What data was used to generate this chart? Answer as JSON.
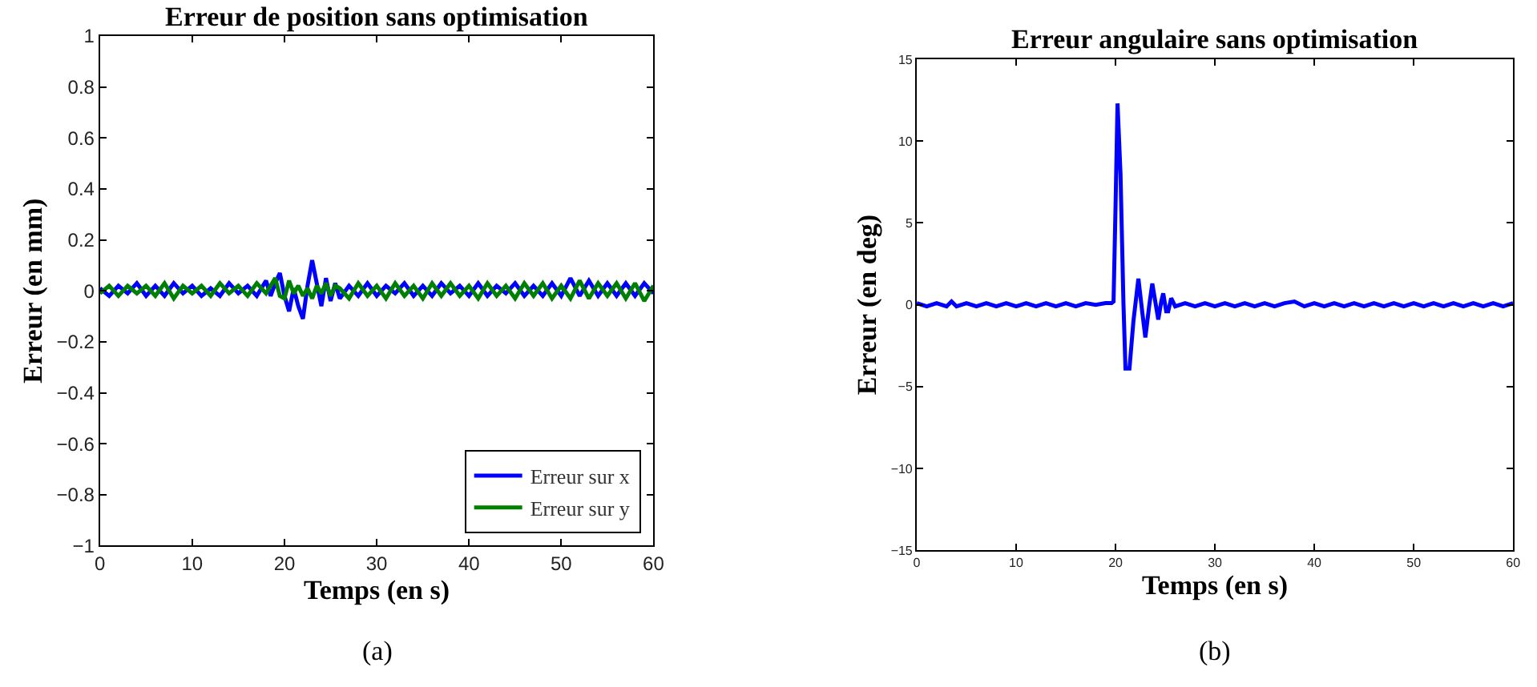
{
  "chart_data": [
    {
      "type": "line",
      "title": "Erreur de position sans optimisation",
      "xlabel": "Temps (en s)",
      "ylabel": "Erreur (en mm)",
      "xlim": [
        0,
        60
      ],
      "ylim": [
        -1,
        1
      ],
      "xticks": [
        0,
        10,
        20,
        30,
        40,
        50,
        60
      ],
      "yticks": [
        -1,
        -0.8,
        -0.6,
        -0.4,
        -0.2,
        0,
        0.2,
        0.4,
        0.6,
        0.8,
        1
      ],
      "legend": "bottom right",
      "annotations": [
        "(a)"
      ],
      "x": [
        0,
        1,
        2,
        3,
        4,
        5,
        6,
        7,
        8,
        9,
        10,
        11,
        12,
        13,
        14,
        15,
        16,
        17,
        18,
        18.5,
        19,
        19.5,
        20,
        20.5,
        21,
        21.5,
        22,
        22.5,
        23,
        23.5,
        24,
        24.5,
        25,
        25.5,
        26,
        27,
        28,
        29,
        30,
        31,
        32,
        33,
        34,
        35,
        36,
        37,
        38,
        39,
        40,
        41,
        42,
        43,
        44,
        45,
        46,
        47,
        48,
        49,
        50,
        51,
        52,
        53,
        54,
        55,
        56,
        57,
        58,
        59,
        60
      ],
      "series": [
        {
          "name": "Erreur sur x",
          "color": "#0000ff",
          "values": [
            0.01,
            -0.02,
            0.02,
            -0.01,
            0.03,
            -0.02,
            0.02,
            -0.02,
            0.03,
            -0.01,
            0.02,
            -0.02,
            0.01,
            -0.02,
            0.03,
            -0.01,
            0.02,
            -0.02,
            0.04,
            -0.02,
            0.03,
            0.07,
            -0.02,
            -0.08,
            0.01,
            -0.06,
            -0.11,
            0.02,
            0.12,
            0.03,
            -0.06,
            0.05,
            -0.04,
            0.03,
            -0.03,
            0.02,
            -0.02,
            0.03,
            -0.02,
            0.02,
            -0.01,
            0.03,
            -0.02,
            0.02,
            -0.02,
            0.03,
            -0.01,
            0.02,
            -0.02,
            0.03,
            -0.02,
            0.02,
            -0.01,
            0.03,
            -0.02,
            0.02,
            -0.02,
            0.03,
            -0.02,
            0.05,
            -0.02,
            0.04,
            -0.02,
            0.03,
            -0.02,
            0.03,
            -0.02,
            0.03,
            -0.01
          ]
        },
        {
          "name": "Erreur sur y",
          "color": "#008000",
          "values": [
            -0.01,
            0.02,
            -0.02,
            0.02,
            -0.01,
            0.02,
            -0.02,
            0.03,
            -0.03,
            0.02,
            -0.01,
            0.02,
            -0.02,
            0.03,
            -0.01,
            0.02,
            -0.02,
            0.03,
            -0.01,
            0.02,
            0.05,
            -0.02,
            -0.03,
            0.04,
            -0.01,
            0.02,
            -0.02,
            0.01,
            -0.03,
            0.02,
            -0.01,
            0.03,
            -0.02,
            0.02,
            0.01,
            -0.03,
            0.03,
            -0.02,
            0.02,
            -0.03,
            0.03,
            -0.02,
            0.02,
            -0.03,
            0.03,
            -0.02,
            0.03,
            -0.02,
            0.02,
            -0.03,
            0.03,
            -0.02,
            0.02,
            -0.03,
            0.03,
            -0.02,
            0.03,
            -0.03,
            0.02,
            -0.03,
            0.04,
            -0.03,
            0.03,
            -0.02,
            0.03,
            -0.03,
            0.03,
            -0.04,
            0.02
          ]
        }
      ]
    },
    {
      "type": "line",
      "title": "Erreur angulaire sans optimisation",
      "xlabel": "Temps (en s)",
      "ylabel": "Erreur (en deg)",
      "xlim": [
        0,
        60
      ],
      "ylim": [
        -15,
        15
      ],
      "xticks": [
        0,
        10,
        20,
        30,
        40,
        50,
        60
      ],
      "yticks": [
        -15,
        -10,
        -5,
        0,
        5,
        10,
        15
      ],
      "annotations": [
        "(b)"
      ],
      "x": [
        0,
        1,
        2,
        3,
        3.5,
        4,
        5,
        6,
        7,
        8,
        9,
        10,
        11,
        12,
        13,
        14,
        15,
        16,
        17,
        18,
        19,
        19.6,
        19.8,
        20.0,
        20.2,
        20.5,
        20.8,
        21.0,
        21.4,
        21.8,
        22.3,
        22.7,
        23.0,
        23.4,
        23.7,
        24.0,
        24.3,
        24.6,
        24.8,
        25.1,
        25.3,
        25.6,
        26,
        27,
        28,
        29,
        30,
        31,
        32,
        33,
        34,
        35,
        36,
        37,
        38,
        39,
        40,
        41,
        42,
        43,
        44,
        45,
        46,
        47,
        48,
        49,
        50,
        51,
        52,
        53,
        54,
        55,
        56,
        57,
        58,
        59,
        60
      ],
      "series": [
        {
          "color": "#0000ff",
          "values": [
            0.1,
            -0.1,
            0.1,
            -0.1,
            0.2,
            -0.1,
            0.1,
            -0.1,
            0.1,
            -0.1,
            0.1,
            -0.1,
            0.1,
            -0.1,
            0.1,
            -0.1,
            0.1,
            -0.1,
            0.1,
            0,
            0.1,
            0.1,
            0.2,
            6,
            12.3,
            8,
            0,
            -3.9,
            -3.9,
            -1,
            1.6,
            -0.5,
            -2,
            0,
            1.3,
            0.2,
            -0.9,
            0.2,
            0.7,
            -0.4,
            -0.4,
            0.4,
            -0.1,
            0.1,
            -0.1,
            0.1,
            -0.1,
            0.1,
            -0.1,
            0.1,
            -0.1,
            0.1,
            -0.1,
            0.1,
            0.2,
            -0.1,
            0.1,
            -0.1,
            0.1,
            -0.1,
            0.1,
            -0.1,
            0.1,
            -0.1,
            0.1,
            -0.1,
            0.1,
            -0.1,
            0.1,
            -0.1,
            0.1,
            -0.1,
            0.1,
            -0.1,
            0.1,
            -0.1,
            0.1
          ]
        }
      ]
    }
  ]
}
